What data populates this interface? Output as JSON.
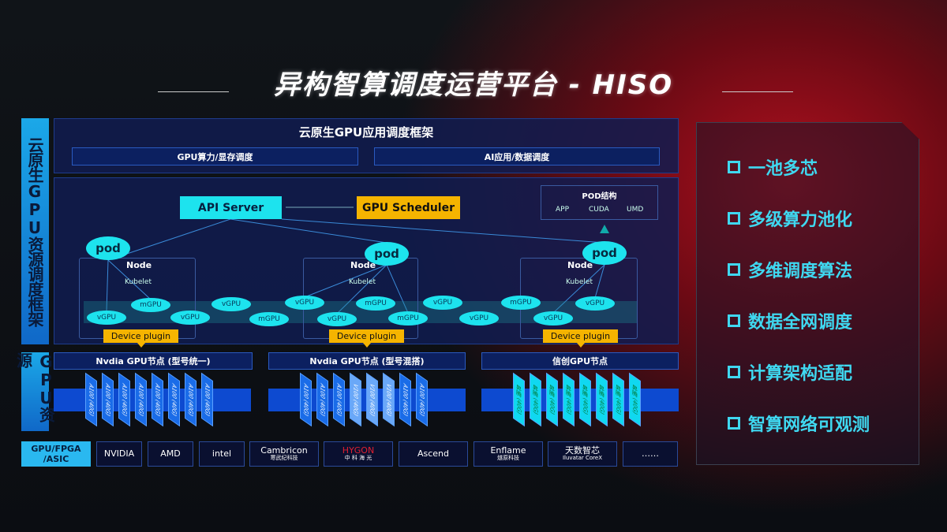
{
  "title": "异构智算调度运营平台 - HISO",
  "side": {
    "framework": "云原生GPU资源调度框架",
    "resources": "GPU资源"
  },
  "header": {
    "title": "云原生GPU应用调度框架",
    "bar1": "GPU算力/显存调度",
    "bar2": "AI应用/数据调度"
  },
  "diagram": {
    "api_server": "API Server",
    "gpu_scheduler": "GPU Scheduler",
    "pod_struct": {
      "title": "POD结构",
      "items": [
        "APP",
        "CUDA",
        "UMD"
      ]
    },
    "pod": "pod",
    "node": "Node",
    "kubelet": "Kubelet",
    "device_plugin": "Device plugin",
    "gpus": [
      "vGPU",
      "mGPU",
      "vGPU",
      "vGPU",
      "mGPU",
      "vGPU",
      "vGPU",
      "mGPU",
      "mGPU",
      "vGPU",
      "vGPU",
      "mGPU",
      "vGPU",
      "vGPU"
    ]
  },
  "gpu_groups": [
    {
      "title": "Nvdia GPU节点 (型号统一)",
      "chips": [
        "A100 (40G)",
        "A100 (40G)",
        "A100 (40G)",
        "A100 (40G)",
        "A100 (40G)",
        "A100 (40G)",
        "A100 (40G)",
        "A100 (40G)"
      ]
    },
    {
      "title": "Nvdia GPU节点 (型号混搭)",
      "chips": [
        "A100 (40G)",
        "A100 (40G)",
        "A100 (40G)",
        "V100 (40G)",
        "V100 (40G)",
        "V100 (40G)",
        "A100 (40G)",
        "A100 (40G)"
      ]
    },
    {
      "title": "信创GPU节点",
      "chips": [
        "昇腾 (40G)",
        "昇腾 (40G)",
        "昇腾 (40G)",
        "昇腾 (40G)",
        "昇腾 (40G)",
        "昇腾 (40G)",
        "昇腾 (40G)",
        "昇腾 (40G)"
      ]
    }
  ],
  "vendors": {
    "label": "GPU/FPGA /ASIC",
    "items": [
      [
        "NVIDIA",
        ""
      ],
      [
        "AMD",
        ""
      ],
      [
        "intel",
        ""
      ],
      [
        "Cambricon",
        "寒武纪科技"
      ],
      [
        "HYGON",
        "中 科 海 光"
      ],
      [
        "Ascend",
        ""
      ],
      [
        "Enflame",
        "燧原科技"
      ],
      [
        "天数智芯",
        "Iluvatar CoreX"
      ],
      [
        "……",
        ""
      ]
    ]
  },
  "features": [
    "一池多芯",
    "多级算力池化",
    "多维调度算法",
    "数据全网调度",
    "计算架构适配",
    "智算网络可观测"
  ],
  "colors": {
    "cyan": "#1de3ee",
    "yellow": "#f5b400",
    "blue": "#1a6ce8"
  }
}
